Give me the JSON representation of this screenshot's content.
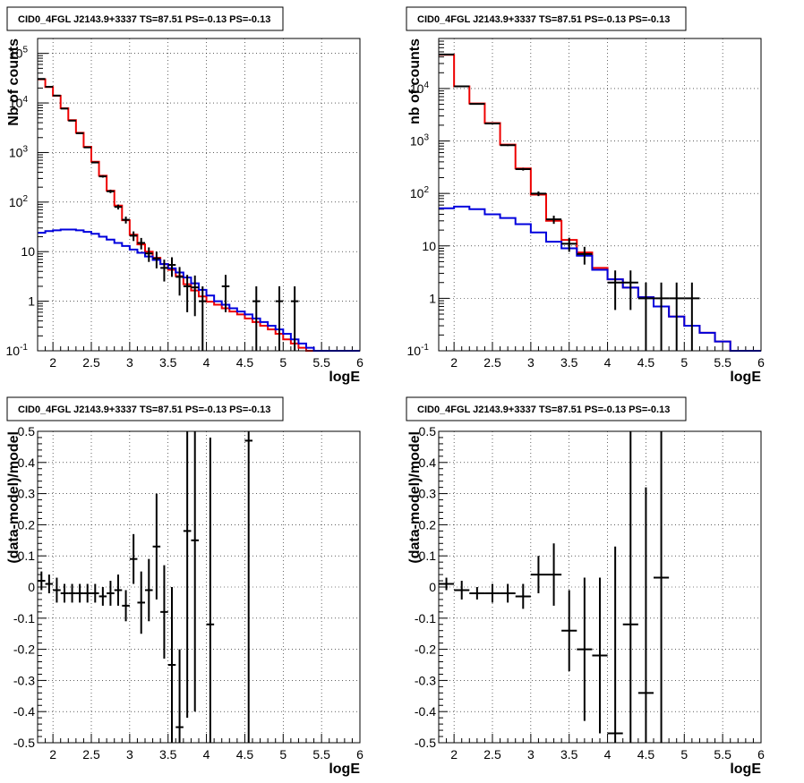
{
  "colors": {
    "data": "#000000",
    "total_model": "#ee0000",
    "component_model": "#0000dd",
    "grid": "#000000",
    "background": "#ffffff"
  },
  "chart_data": [
    {
      "type": "line",
      "title": "CID0_4FGL J2143.9+3337 TS=87.51 PS=-0.13 PS=-0.13",
      "xlabel": "logE",
      "ylabel": "Nb of counts",
      "xlim": [
        1.8,
        6.0
      ],
      "ylim": [
        0.1,
        200000
      ],
      "yscale": "log",
      "grid": true,
      "x_ticks": [
        "2",
        "2.5",
        "3",
        "3.5",
        "4",
        "4.5",
        "5",
        "5.5",
        "6"
      ],
      "y_ticks": [
        "10^-1",
        "1",
        "10",
        "10^2",
        "10^3",
        "10^4",
        "10^5"
      ],
      "bin_edges": [
        1.8,
        1.9,
        2.0,
        2.1,
        2.2,
        2.3,
        2.4,
        2.5,
        2.6,
        2.7,
        2.8,
        2.9,
        3.0,
        3.1,
        3.2,
        3.3,
        3.4,
        3.5,
        3.6,
        3.7,
        3.8,
        3.9,
        4.0,
        4.1,
        4.2,
        4.3,
        4.4,
        4.5,
        4.6,
        4.7,
        4.8,
        4.9,
        5.0,
        5.1,
        5.2,
        5.3,
        5.4,
        5.5,
        5.6,
        5.7,
        5.8,
        5.9,
        6.0
      ],
      "series": [
        {
          "style": "step",
          "color": "#ee0000",
          "values": [
            30000,
            21000,
            14000,
            7800,
            4500,
            2500,
            1300,
            650,
            340,
            170,
            85,
            43,
            22,
            14,
            10,
            7.5,
            5.6,
            4.3,
            3.2,
            2.2,
            1.65,
            1.25,
            0.98,
            0.85,
            0.72,
            0.62,
            0.54,
            0.45,
            0.38,
            0.32,
            0.27,
            0.22,
            0.17,
            0.14,
            0.115,
            0.1,
            0.1,
            0.1,
            0.1,
            0.1,
            0.1,
            0.1
          ]
        },
        {
          "style": "step",
          "color": "#0000dd",
          "values": [
            24,
            26,
            27,
            28,
            28,
            27,
            25,
            23,
            20,
            17.5,
            15,
            13,
            11,
            9.5,
            8,
            6.8,
            5.6,
            4.6,
            3.8,
            3.0,
            2.3,
            1.7,
            1.3,
            1.0,
            0.85,
            0.72,
            0.62,
            0.54,
            0.45,
            0.38,
            0.32,
            0.27,
            0.22,
            0.17,
            0.14,
            0.115,
            0.1,
            0.1,
            0.1,
            0.1,
            0.1,
            0.1
          ]
        },
        {
          "style": "errorbars",
          "color": "#000000",
          "x": [
            1.85,
            1.95,
            2.05,
            2.15,
            2.25,
            2.35,
            2.45,
            2.55,
            2.65,
            2.75,
            2.85,
            2.95,
            3.05,
            3.15,
            3.25,
            3.35,
            3.45,
            3.55,
            3.65,
            3.75,
            3.85,
            3.95,
            4.25,
            4.65,
            4.95,
            5.15
          ],
          "y": [
            30500,
            21200,
            14100,
            7700,
            4400,
            2450,
            1270,
            630,
            330,
            165,
            80,
            44,
            21,
            15,
            9.2,
            7.3,
            4.7,
            5.4,
            3.1,
            2.0,
            1.9,
            1.0,
            2.0,
            1.0,
            1.0,
            1.0
          ],
          "yerr_low": [
            175,
            145,
            119,
            88,
            66,
            50,
            36,
            25,
            18,
            13,
            9,
            7,
            4.6,
            3.9,
            3.0,
            2.7,
            2.2,
            2.3,
            1.8,
            1.4,
            1.4,
            1.0,
            1.4,
            1.0,
            1.0,
            1.0
          ],
          "yerr_high": [
            175,
            145,
            119,
            88,
            66,
            50,
            36,
            25,
            18,
            13,
            9,
            7,
            4.6,
            3.9,
            3.0,
            2.7,
            2.2,
            2.3,
            1.8,
            1.4,
            1.4,
            1.0,
            1.4,
            1.0,
            1.0,
            1.0
          ]
        }
      ]
    },
    {
      "type": "line",
      "title": "CID0_4FGL J2143.9+3337 TS=87.51 PS=-0.13 PS=-0.13",
      "xlabel": "logE",
      "ylabel": "nb of counts",
      "xlim": [
        1.8,
        6.0
      ],
      "ylim": [
        0.1,
        90000
      ],
      "yscale": "log",
      "grid": true,
      "x_ticks": [
        "2",
        "2.5",
        "3",
        "3.5",
        "4",
        "4.5",
        "5",
        "5.5",
        "6"
      ],
      "y_ticks": [
        "10^-1",
        "1",
        "10",
        "10^2",
        "10^3",
        "10^4"
      ],
      "bin_edges": [
        1.8,
        2.0,
        2.2,
        2.4,
        2.6,
        2.8,
        3.0,
        3.2,
        3.4,
        3.6,
        3.8,
        4.0,
        4.2,
        4.4,
        4.6,
        4.8,
        5.0,
        5.2,
        5.4,
        5.6,
        5.8,
        6.0
      ],
      "series": [
        {
          "style": "step",
          "color": "#ee0000",
          "values": [
            44000,
            11000,
            5200,
            2200,
            850,
            300,
            95,
            30,
            13,
            7.5,
            3.8,
            2.3,
            1.6,
            1.05,
            0.7,
            0.45,
            0.3,
            0.22,
            0.15,
            0.1,
            0.1
          ]
        },
        {
          "style": "step",
          "color": "#0000dd",
          "values": [
            52,
            56,
            50,
            40,
            34,
            26,
            18,
            12,
            9,
            6.5,
            3.5,
            2.3,
            1.6,
            1.05,
            0.7,
            0.45,
            0.3,
            0.22,
            0.15,
            0.1,
            0.1
          ]
        },
        {
          "style": "errorbars",
          "color": "#000000",
          "x": [
            1.9,
            2.1,
            2.3,
            2.5,
            2.7,
            2.9,
            3.1,
            3.3,
            3.5,
            3.7,
            4.1,
            4.3,
            4.5,
            4.7,
            4.9,
            5.1
          ],
          "y": [
            44500,
            11000,
            5100,
            2150,
            830,
            290,
            99,
            32,
            11,
            7,
            2.0,
            2.0,
            1.0,
            1.0,
            1.0,
            1.0
          ],
          "yerr_low": [
            210,
            105,
            71,
            46,
            29,
            17,
            10,
            5.7,
            3.3,
            2.6,
            1.4,
            1.4,
            1.0,
            1.0,
            1.0,
            1.0
          ],
          "yerr_high": [
            210,
            105,
            71,
            46,
            29,
            17,
            10,
            5.7,
            3.3,
            2.6,
            1.4,
            1.4,
            1.0,
            1.0,
            1.0,
            1.0
          ]
        }
      ]
    },
    {
      "type": "scatter",
      "title": "CID0_4FGL J2143.9+3337 TS=87.51 PS=-0.13 PS=-0.13",
      "xlabel": "logE",
      "ylabel": "(data-model)/model",
      "xlim": [
        1.8,
        6.0
      ],
      "ylim": [
        -0.5,
        0.5
      ],
      "grid": true,
      "x_ticks": [
        "2",
        "2.5",
        "3",
        "3.5",
        "4",
        "4.5",
        "5",
        "5.5",
        "6"
      ],
      "y_ticks": [
        "-0.5",
        "-0.4",
        "-0.3",
        "-0.2",
        "-0.1",
        "0",
        "0.1",
        "0.2",
        "0.3",
        "0.4",
        "0.5"
      ],
      "series": [
        {
          "style": "errorbars",
          "color": "#000000",
          "x": [
            1.85,
            1.95,
            2.05,
            2.15,
            2.25,
            2.35,
            2.45,
            2.55,
            2.65,
            2.75,
            2.85,
            2.95,
            3.05,
            3.15,
            3.25,
            3.35,
            3.45,
            3.55,
            3.65,
            3.75,
            3.85,
            4.05,
            4.55
          ],
          "y": [
            0.02,
            0.01,
            -0.01,
            -0.02,
            -0.02,
            -0.02,
            -0.02,
            -0.02,
            -0.03,
            -0.02,
            -0.01,
            -0.06,
            0.09,
            -0.05,
            -0.01,
            0.13,
            -0.08,
            -0.25,
            -0.45,
            0.18,
            0.15,
            -0.12,
            0.47
          ],
          "yerr": [
            0.03,
            0.03,
            0.04,
            0.03,
            0.03,
            0.03,
            0.03,
            0.03,
            0.03,
            0.04,
            0.05,
            0.05,
            0.08,
            0.1,
            0.1,
            0.17,
            0.15,
            0.25,
            0.25,
            0.6,
            0.55,
            0.6,
            1.0
          ]
        }
      ]
    },
    {
      "type": "scatter",
      "title": "CID0_4FGL J2143.9+3337 TS=87.51 PS=-0.13 PS=-0.13",
      "xlabel": "logE",
      "ylabel": "(data-model)/model",
      "xlim": [
        1.8,
        6.0
      ],
      "ylim": [
        -0.5,
        0.5
      ],
      "grid": true,
      "x_ticks": [
        "2",
        "2.5",
        "3",
        "3.5",
        "4",
        "4.5",
        "5",
        "5.5",
        "6"
      ],
      "y_ticks": [
        "-0.5",
        "-0.4",
        "-0.3",
        "-0.2",
        "-0.1",
        "0",
        "0.1",
        "0.2",
        "0.3",
        "0.4",
        "0.5"
      ],
      "series": [
        {
          "style": "errorbars",
          "color": "#000000",
          "x": [
            1.9,
            2.1,
            2.3,
            2.5,
            2.7,
            2.9,
            3.1,
            3.3,
            3.5,
            3.7,
            3.9,
            4.1,
            4.3,
            4.5,
            4.7
          ],
          "y": [
            0.01,
            -0.01,
            -0.02,
            -0.02,
            -0.02,
            -0.03,
            0.04,
            0.04,
            -0.14,
            -0.2,
            -0.22,
            -0.47,
            -0.12,
            -0.34,
            0.03
          ],
          "yerr": [
            0.02,
            0.03,
            0.02,
            0.03,
            0.03,
            0.04,
            0.06,
            0.1,
            0.13,
            0.23,
            0.25,
            0.6,
            0.7,
            0.66,
            0.9
          ]
        }
      ]
    }
  ]
}
